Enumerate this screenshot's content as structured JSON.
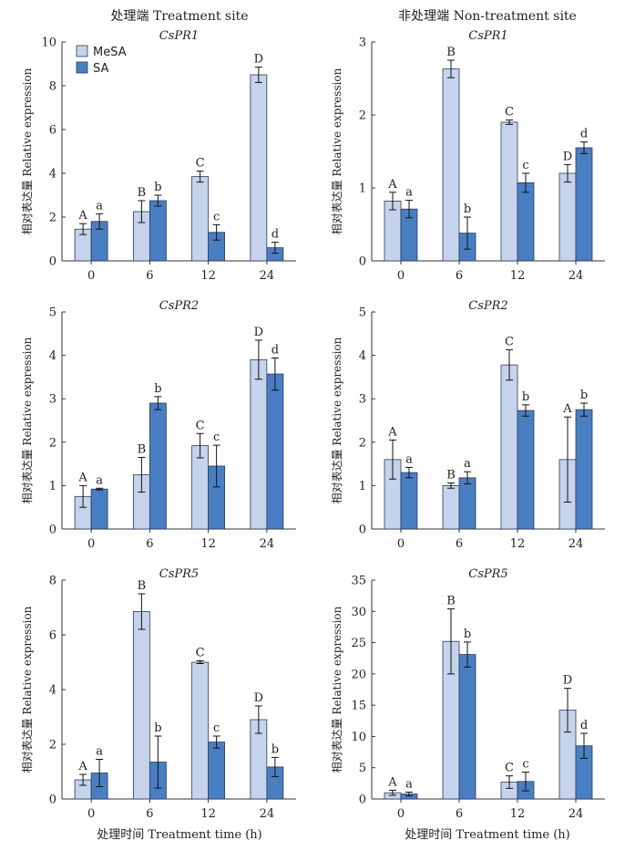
{
  "column_titles": [
    "处理端 Treatment site",
    "非处理端 Non-treatment site"
  ],
  "x_axis_label": "处理时间 Treatment time (h)",
  "legend": [
    {
      "name": "MeSA",
      "color": "#c5d3ec"
    },
    {
      "name": "SA",
      "color": "#4a7ec2"
    }
  ],
  "chart_data": [
    {
      "type": "bar",
      "title": "CsPR1",
      "column": 0,
      "row": 0,
      "ylabel": "相对表达量 Relative expression",
      "categories": [
        "0",
        "6",
        "12",
        "24"
      ],
      "ylim": [
        0,
        10
      ],
      "yticks": [
        "0",
        "2",
        "4",
        "6",
        "8",
        "10"
      ],
      "ytick_values": [
        0,
        2,
        4,
        6,
        8,
        10
      ],
      "series": [
        {
          "name": "MeSA",
          "values": [
            1.45,
            2.25,
            3.85,
            8.5
          ],
          "errors": [
            0.25,
            0.5,
            0.25,
            0.35
          ],
          "labels": [
            "A",
            "B",
            "C",
            "D"
          ]
        },
        {
          "name": "SA",
          "values": [
            1.8,
            2.75,
            1.3,
            0.6
          ],
          "errors": [
            0.35,
            0.25,
            0.35,
            0.25
          ],
          "labels": [
            "a",
            "b",
            "c",
            "d"
          ]
        }
      ]
    },
    {
      "type": "bar",
      "title": "CsPR1",
      "column": 1,
      "row": 0,
      "ylabel": "相对表达量 Relative expression",
      "categories": [
        "0",
        "6",
        "12",
        "24"
      ],
      "ylim": [
        0,
        3
      ],
      "yticks": [
        "0",
        "1",
        "2",
        "3"
      ],
      "ytick_values": [
        0,
        1,
        2,
        3
      ],
      "series": [
        {
          "name": "MeSA",
          "values": [
            0.82,
            2.63,
            1.9,
            1.2
          ],
          "errors": [
            0.12,
            0.12,
            0.03,
            0.12
          ],
          "labels": [
            "A",
            "B",
            "C",
            "D"
          ]
        },
        {
          "name": "SA",
          "values": [
            0.71,
            0.38,
            1.07,
            1.55
          ],
          "errors": [
            0.12,
            0.22,
            0.13,
            0.08
          ],
          "labels": [
            "a",
            "b",
            "c",
            "d"
          ]
        }
      ]
    },
    {
      "type": "bar",
      "title": "CsPR2",
      "column": 0,
      "row": 1,
      "ylabel": "相对表达量 Relative expression",
      "categories": [
        "0",
        "6",
        "12",
        "24"
      ],
      "ylim": [
        0,
        5
      ],
      "yticks": [
        "0",
        "1",
        "2",
        "3",
        "4",
        "5"
      ],
      "ytick_values": [
        0,
        1,
        2,
        3,
        4,
        5
      ],
      "series": [
        {
          "name": "MeSA",
          "values": [
            0.75,
            1.25,
            1.92,
            3.9
          ],
          "errors": [
            0.25,
            0.4,
            0.28,
            0.45
          ],
          "labels": [
            "A",
            "B",
            "C",
            "D"
          ]
        },
        {
          "name": "SA",
          "values": [
            0.92,
            2.9,
            1.45,
            3.57
          ],
          "errors": [
            0.02,
            0.15,
            0.48,
            0.37
          ],
          "labels": [
            "a",
            "b",
            "c",
            "d"
          ]
        }
      ]
    },
    {
      "type": "bar",
      "title": "CsPR2",
      "column": 1,
      "row": 1,
      "ylabel": "相对表达量 Relative expression",
      "categories": [
        "0",
        "6",
        "12",
        "24"
      ],
      "ylim": [
        0,
        5
      ],
      "yticks": [
        "0",
        "1",
        "2",
        "3",
        "4",
        "5"
      ],
      "ytick_values": [
        0,
        1,
        2,
        3,
        4,
        5
      ],
      "series": [
        {
          "name": "MeSA",
          "values": [
            1.6,
            1.0,
            3.78,
            1.6
          ],
          "errors": [
            0.45,
            0.06,
            0.35,
            0.98
          ],
          "labels": [
            "A",
            "B",
            "C",
            "A"
          ]
        },
        {
          "name": "SA",
          "values": [
            1.3,
            1.18,
            2.73,
            2.75
          ],
          "errors": [
            0.12,
            0.14,
            0.13,
            0.15
          ],
          "labels": [
            "a",
            "a",
            "b",
            "b"
          ]
        }
      ]
    },
    {
      "type": "bar",
      "title": "CsPR5",
      "column": 0,
      "row": 2,
      "ylabel": "相对表达量 Relative expression",
      "categories": [
        "0",
        "6",
        "12",
        "24"
      ],
      "ylim": [
        0,
        8
      ],
      "yticks": [
        "0",
        "2",
        "4",
        "6",
        "8"
      ],
      "ytick_values": [
        0,
        2,
        4,
        6,
        8
      ],
      "series": [
        {
          "name": "MeSA",
          "values": [
            0.7,
            6.85,
            5.0,
            2.9
          ],
          "errors": [
            0.2,
            0.65,
            0.05,
            0.5
          ],
          "labels": [
            "A",
            "B",
            "C",
            "D"
          ]
        },
        {
          "name": "SA",
          "values": [
            0.95,
            1.35,
            2.08,
            1.17
          ],
          "errors": [
            0.5,
            0.95,
            0.22,
            0.35
          ],
          "labels": [
            "a",
            "b",
            "c",
            "b"
          ]
        }
      ]
    },
    {
      "type": "bar",
      "title": "CsPR5",
      "column": 1,
      "row": 2,
      "ylabel": "相对表达量 Relative expression",
      "categories": [
        "0",
        "6",
        "12",
        "24"
      ],
      "ylim": [
        0,
        35
      ],
      "yticks": [
        "0",
        "5",
        "10",
        "15",
        "20",
        "25",
        "30",
        "35"
      ],
      "ytick_values": [
        0,
        5,
        10,
        15,
        20,
        25,
        30,
        35
      ],
      "series": [
        {
          "name": "MeSA",
          "values": [
            1.0,
            25.2,
            2.7,
            14.2
          ],
          "errors": [
            0.4,
            5.2,
            1.0,
            3.5
          ],
          "labels": [
            "A",
            "B",
            "C",
            "D"
          ]
        },
        {
          "name": "SA",
          "values": [
            0.8,
            23.1,
            2.8,
            8.5
          ],
          "errors": [
            0.3,
            2.0,
            1.5,
            2.0
          ],
          "labels": [
            "a",
            "b",
            "c",
            "d"
          ]
        }
      ]
    }
  ]
}
